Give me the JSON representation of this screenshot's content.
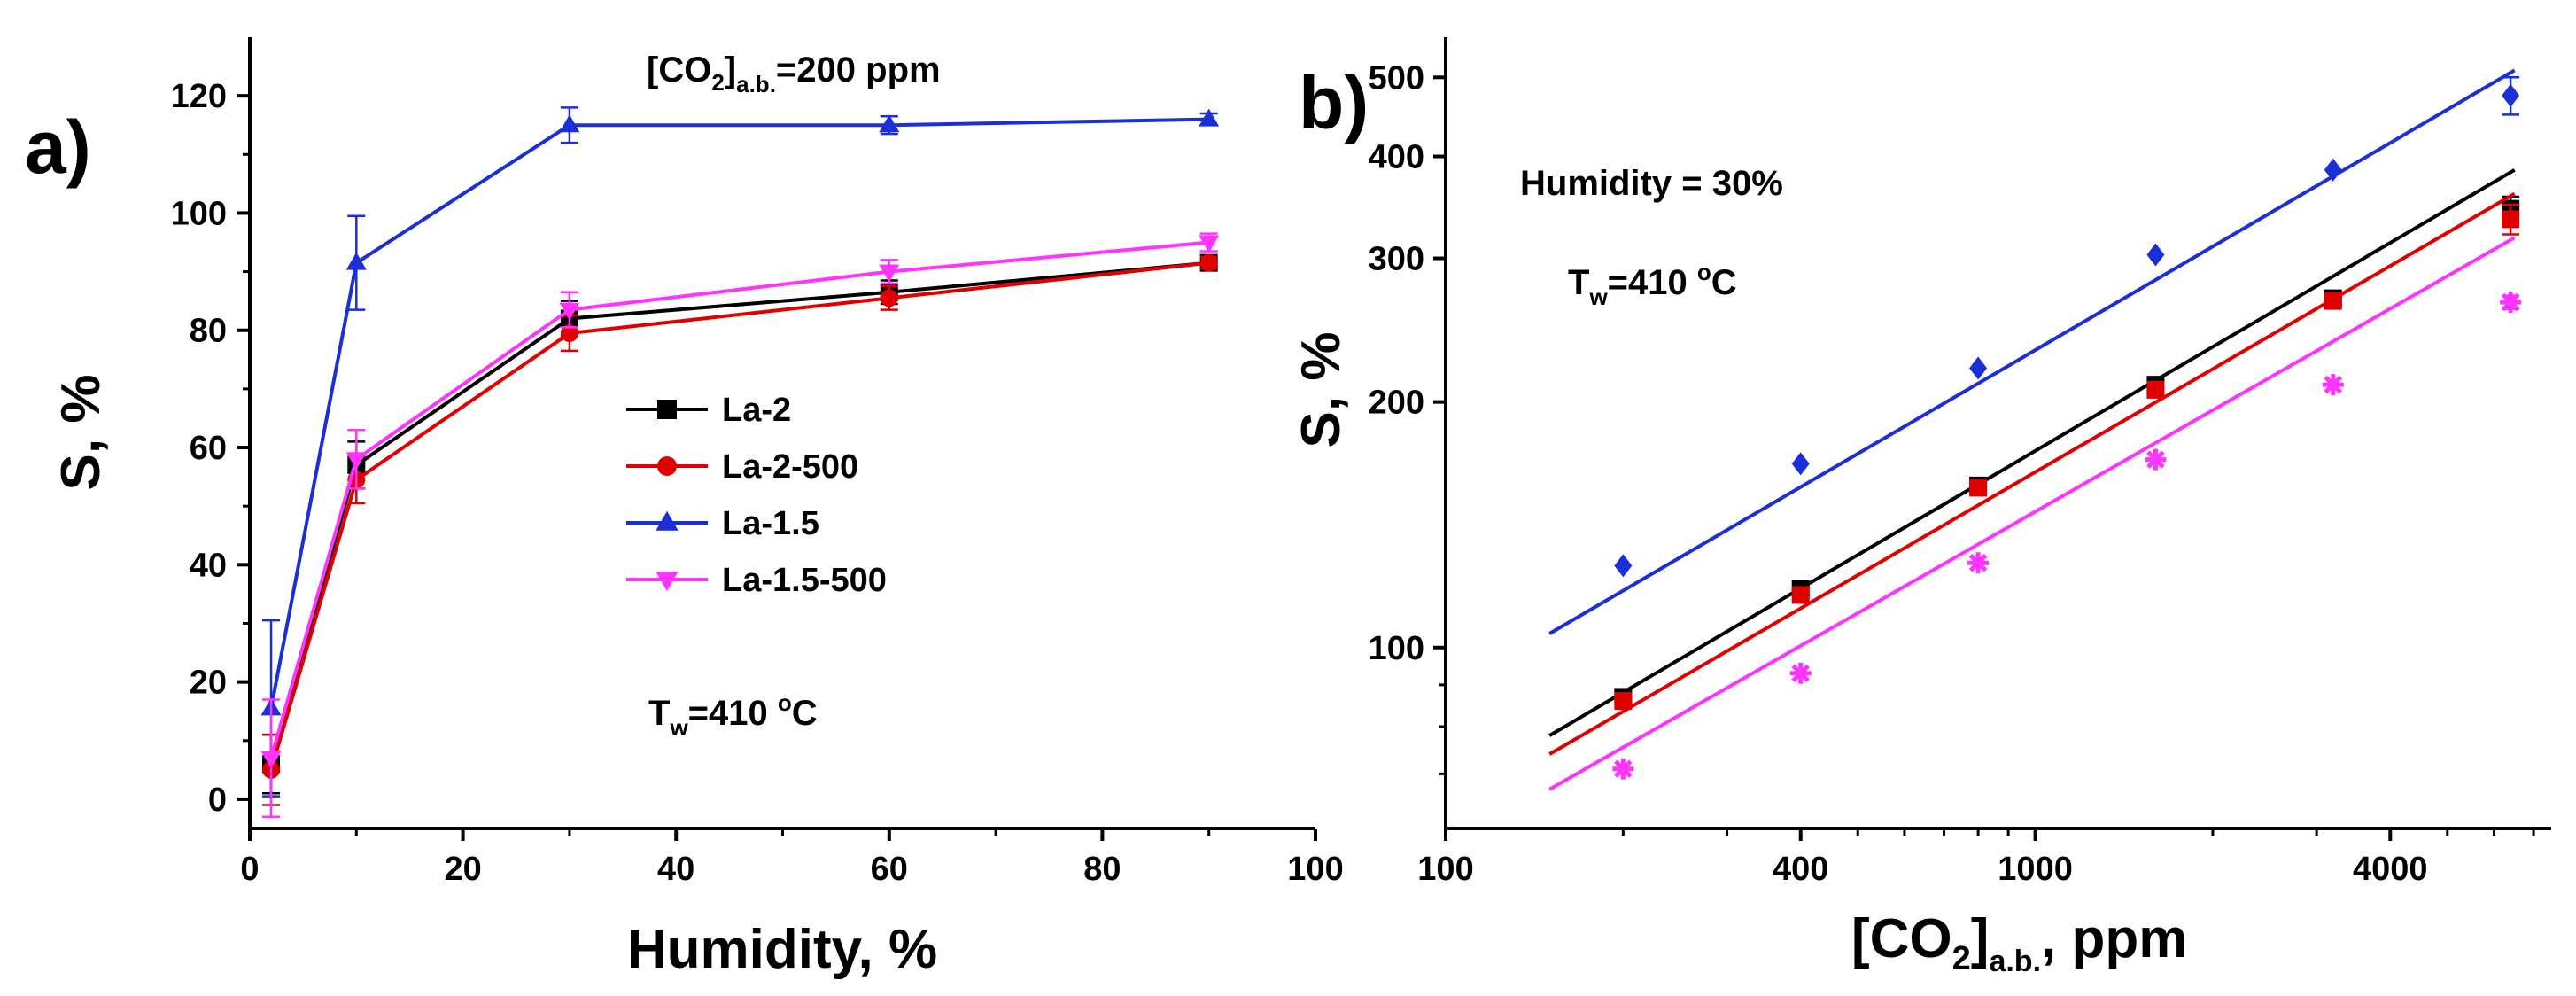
{
  "chart_data": [
    {
      "type": "line",
      "panel_label": "a)",
      "xlabel": "Humidity, %",
      "ylabel": "S, %",
      "xlim": [
        0,
        100
      ],
      "ylim": [
        -5,
        130
      ],
      "x_ticks": [
        0,
        20,
        40,
        60,
        80,
        100
      ],
      "x_tick_labels": [
        "0",
        "20",
        "40",
        "60",
        "80",
        "100"
      ],
      "y_ticks": [
        0,
        20,
        40,
        60,
        80,
        100,
        120
      ],
      "y_tick_labels": [
        "0",
        "20",
        "40",
        "60",
        "80",
        "100",
        "120"
      ],
      "annotations": {
        "co2_main": "[CO",
        "co2_sub1": "2",
        "co2_bracket": "]",
        "co2_sub2": "a.b.",
        "co2_tail": "=200 ppm",
        "temp_main": "T",
        "temp_sub": "w",
        "temp_eq": "=410 ",
        "temp_deg": "o",
        "temp_unit": "C"
      },
      "legend_position": "center",
      "x": [
        2,
        10,
        30,
        60,
        90
      ],
      "series": [
        {
          "name": "La-2",
          "color": "#000000",
          "marker": "square",
          "values": [
            6,
            57,
            82,
            86.5,
            91.5
          ],
          "errors": [
            5,
            4,
            3,
            2,
            1
          ]
        },
        {
          "name": "La-2-500",
          "color": "#e00000",
          "marker": "circle",
          "values": [
            5,
            54.5,
            79.5,
            85.5,
            91.5
          ],
          "errors": [
            6,
            4,
            3,
            2,
            1
          ]
        },
        {
          "name": "La-1.5",
          "color": "#1a2fd8",
          "marker": "triangle-up",
          "values": [
            15.5,
            91.5,
            115,
            115,
            116
          ],
          "errors": [
            15,
            8,
            3,
            1.5,
            1
          ]
        },
        {
          "name": "La-1.5-500",
          "color": "#ff33ff",
          "marker": "triangle-down",
          "values": [
            7,
            58,
            83.5,
            90,
            95
          ],
          "errors": [
            10,
            5,
            3,
            2,
            1.5
          ]
        }
      ]
    },
    {
      "type": "scatter",
      "panel_label": "b)",
      "xscale": "log",
      "yscale": "log",
      "xlabel_main": "[CO",
      "xlabel_sub1": "2",
      "xlabel_bracket": "]",
      "xlabel_sub2": "a.b.",
      "xlabel_tail": ", ppm",
      "ylabel": "S, %",
      "xlim": [
        100,
        7500
      ],
      "ylim": [
        60,
        560
      ],
      "x_ticks": [
        100,
        400,
        1000,
        4000
      ],
      "x_tick_labels": [
        "100",
        "400",
        "1000",
        "4000"
      ],
      "y_ticks": [
        100,
        200,
        300,
        400,
        500
      ],
      "y_tick_labels": [
        "100",
        "200",
        "300",
        "400",
        "500"
      ],
      "annotations": {
        "humidity": "Humidity = 30%",
        "temp_main": "T",
        "temp_sub": "w",
        "temp_eq": "=410 ",
        "temp_deg": "o",
        "temp_unit": "C"
      },
      "x": [
        200,
        400,
        800,
        1600,
        3200,
        6400
      ],
      "fit_x_range": [
        150,
        6500
      ],
      "series": [
        {
          "name": "La-2",
          "color": "#000000",
          "marker": "square",
          "values": [
            87,
            118,
            158,
            210,
            268,
            345
          ],
          "errors": [
            0,
            0,
            0,
            0,
            0,
            12
          ],
          "fit_y": [
            78,
            385
          ]
        },
        {
          "name": "La-2-500",
          "color": "#e00000",
          "marker": "square",
          "values": [
            86,
            116,
            157,
            207,
            266,
            335
          ],
          "errors": [
            0,
            0,
            0,
            0,
            0,
            14
          ],
          "fit_y": [
            74,
            360
          ]
        },
        {
          "name": "La-1.5",
          "color": "#1a2fd8",
          "marker": "diamond",
          "values": [
            126,
            168,
            220,
            303,
            385,
            475
          ],
          "errors": [
            0,
            0,
            0,
            0,
            0,
            25
          ],
          "fit_y": [
            104,
            510
          ]
        },
        {
          "name": "La-1.5-500",
          "color": "#ff33ff",
          "marker": "asterisk",
          "values": [
            71,
            93,
            127,
            170,
            210,
            265
          ],
          "errors": [
            0,
            0,
            0,
            0,
            0,
            5
          ],
          "fit_y": [
            67,
            318
          ]
        }
      ]
    }
  ]
}
